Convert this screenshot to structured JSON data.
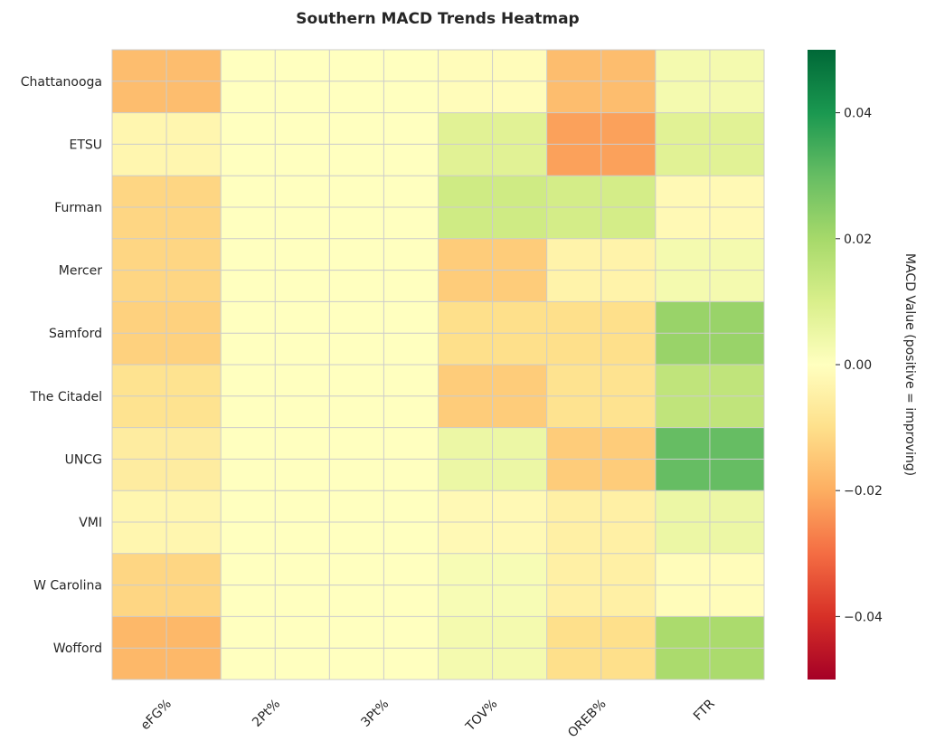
{
  "chart_data": {
    "type": "heatmap",
    "title": "Southern MACD Trends Heatmap",
    "xlabel": "",
    "ylabel": "",
    "columns": [
      "eFG%",
      "2Pt%",
      "3Pt%",
      "TOV%",
      "OREB%",
      "FTR"
    ],
    "rows": [
      "Chattanooga",
      "ETSU",
      "Furman",
      "Mercer",
      "Samford",
      "The Citadel",
      "UNCG",
      "VMI",
      "W Carolina",
      "Wofford"
    ],
    "values": [
      [
        -0.017,
        0.0,
        0.0,
        -0.001,
        -0.017,
        0.003
      ],
      [
        -0.003,
        0.0,
        0.0,
        0.008,
        -0.022,
        0.008
      ],
      [
        -0.012,
        0.0,
        0.0,
        0.012,
        0.011,
        -0.002
      ],
      [
        -0.012,
        0.0,
        0.0,
        -0.014,
        -0.004,
        0.003
      ],
      [
        -0.013,
        0.0,
        0.0,
        -0.01,
        -0.01,
        0.022
      ],
      [
        -0.009,
        0.0,
        0.0,
        -0.014,
        -0.009,
        0.015
      ],
      [
        -0.006,
        0.0,
        0.0,
        0.005,
        -0.014,
        0.03
      ],
      [
        -0.003,
        0.0,
        0.0,
        -0.002,
        -0.005,
        0.005
      ],
      [
        -0.012,
        0.0,
        0.0,
        0.002,
        -0.005,
        -0.001
      ],
      [
        -0.018,
        0.0,
        0.0,
        0.003,
        -0.01,
        0.019
      ]
    ],
    "colormap": "RdYlGn",
    "vmin": -0.05,
    "vmax": 0.05,
    "grid": true,
    "colorbar": {
      "label": "MACD Value (positive = improving)",
      "ticks": [
        -0.04,
        -0.02,
        0.0,
        0.02,
        0.04
      ],
      "tick_labels": [
        "−0.04",
        "−0.02",
        "0.00",
        "0.02",
        "0.04"
      ]
    }
  }
}
